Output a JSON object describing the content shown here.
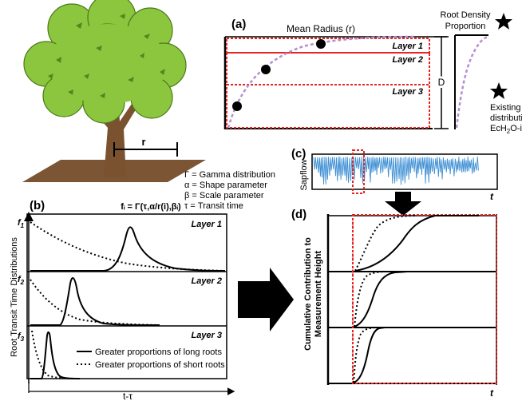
{
  "panel_a": {
    "label": "(a)",
    "mean_radius": "Mean Radius (r)",
    "layers": [
      "Layer 1",
      "Layer 2",
      "Layer 3"
    ],
    "depth": "D",
    "root_density_line1": "Root Density",
    "root_density_line2": "Proportion",
    "existing_line1": "Existing root",
    "existing_line2": "distribution in",
    "existing_line3_pre": "EcH",
    "existing_line3_sub": "2",
    "existing_line3_post": "O-iso"
  },
  "tree": {
    "radius_label": "r",
    "canopy_color": "#8cc63f",
    "trunk_color": "#7a5230",
    "soil_color": "#7b5534"
  },
  "legend_params": [
    "Γ = Gamma distribution",
    "α = Shape parameter",
    "β = Scale parameter",
    "τ = Transit time"
  ],
  "panel_b": {
    "label": "(b)",
    "formula": "fᵢ = Γ(τ,α/r(i),βᵢ)",
    "ylabel": "Root Transit Time Distributions",
    "xlabel": "t-τ",
    "layers": [
      "Layer 1",
      "Layer 2",
      "Layer 3"
    ],
    "f_labels": [
      {
        "f": "f",
        "sub": "1"
      },
      {
        "f": "f",
        "sub": "2"
      },
      {
        "f": "f",
        "sub": "3"
      }
    ],
    "legend_solid": "Greater proportions of long roots",
    "legend_dotted": "Greater proportions of short roots"
  },
  "panel_c": {
    "label": "(c)",
    "ylabel": "Sapflow",
    "xaxis": "t",
    "line_color": "#3d8fd4"
  },
  "panel_d": {
    "label": "(d)",
    "ylabel_line1": "Cumulative Contribution to",
    "ylabel_line2": "Measurement Height",
    "xaxis": "t"
  },
  "colors": {
    "highlight_red": "#e52521",
    "dist_purple": "#b78fcf"
  }
}
